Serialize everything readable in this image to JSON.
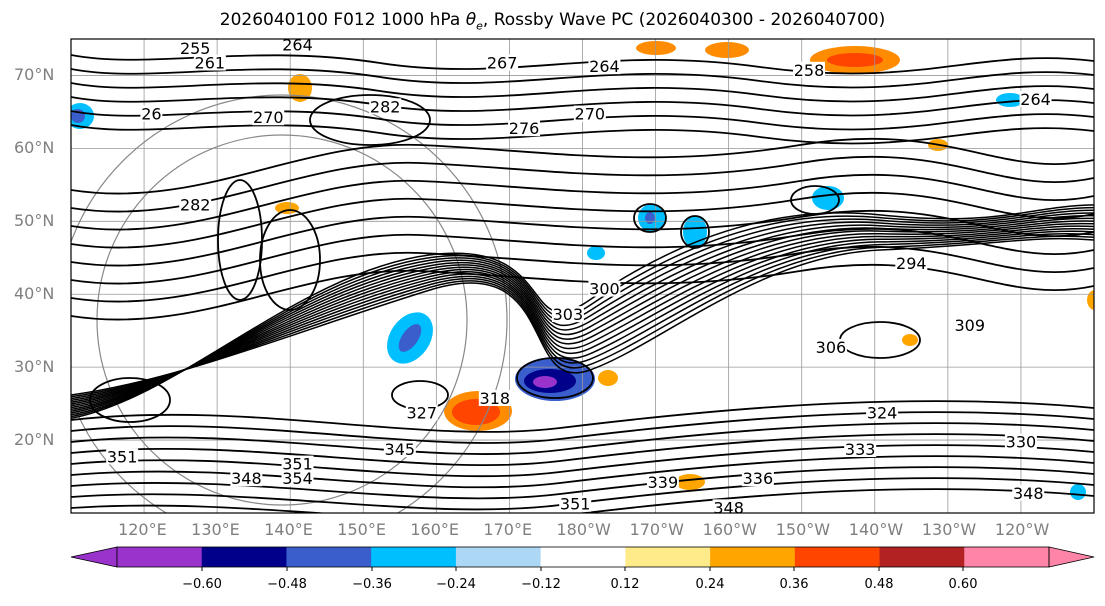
{
  "title": {
    "prefix": "2026040100 F012 1000 hPa ",
    "symbol": "θ",
    "symbol_sub": "e",
    "suffix": ", Rossby Wave PC (2026040300 - 2026040700)"
  },
  "lat_labels": [
    "70°N",
    "60°N",
    "50°N",
    "40°N",
    "30°N",
    "20°N"
  ],
  "lon_labels": [
    "120°E",
    "130°E",
    "140°E",
    "150°E",
    "160°E",
    "170°E",
    "180°W",
    "170°W",
    "160°W",
    "150°W",
    "140°W",
    "130°W",
    "120°W"
  ],
  "colorbar": {
    "ticks": [
      "−0.60",
      "−0.48",
      "−0.36",
      "−0.24",
      "−0.12",
      "0.12",
      "0.24",
      "0.36",
      "0.48",
      "0.60"
    ],
    "colors": [
      "#9933cc",
      "#00008b",
      "#3a5fcd",
      "#00bfff",
      "#add8f5",
      "#ffffff",
      "#ffeb8a",
      "#ffa500",
      "#ff4500",
      "#b22222",
      "#ff85a8",
      "#ff85a8"
    ]
  },
  "contour_labels": [
    {
      "text": "255",
      "lon": 127,
      "lat": 73.5
    },
    {
      "text": "261",
      "lon": 129,
      "lat": 71.5
    },
    {
      "text": "264",
      "lon": 141,
      "lat": 74
    },
    {
      "text": "267",
      "lon": 169,
      "lat": 71.5
    },
    {
      "text": "264",
      "lon": 183,
      "lat": 71
    },
    {
      "text": "258",
      "lon": 211,
      "lat": 70.5
    },
    {
      "text": "264",
      "lon": 242,
      "lat": 66.5
    },
    {
      "text": "282",
      "lon": 153,
      "lat": 65.5
    },
    {
      "text": "276",
      "lon": 172,
      "lat": 62.5
    },
    {
      "text": "270",
      "lon": 181,
      "lat": 64.5
    },
    {
      "text": "270",
      "lon": 137,
      "lat": 64
    },
    {
      "text": "26",
      "lon": 121,
      "lat": 64.5
    },
    {
      "text": "282",
      "lon": 127,
      "lat": 52
    },
    {
      "text": "294",
      "lon": 225,
      "lat": 44
    },
    {
      "text": "309",
      "lon": 233,
      "lat": 35.5
    },
    {
      "text": "306",
      "lon": 214,
      "lat": 32.5
    },
    {
      "text": "303",
      "lon": 178,
      "lat": 37
    },
    {
      "text": "300",
      "lon": 183,
      "lat": 40.5
    },
    {
      "text": "318",
      "lon": 168,
      "lat": 25.5
    },
    {
      "text": "327",
      "lon": 158,
      "lat": 23.5
    },
    {
      "text": "324",
      "lon": 221,
      "lat": 23.5
    },
    {
      "text": "345",
      "lon": 155,
      "lat": 18.5
    },
    {
      "text": "351",
      "lon": 117,
      "lat": 17.5
    },
    {
      "text": "351",
      "lon": 141,
      "lat": 16.5
    },
    {
      "text": "354",
      "lon": 141,
      "lat": 14.5
    },
    {
      "text": "348",
      "lon": 134,
      "lat": 14.5
    },
    {
      "text": "339",
      "lon": 191,
      "lat": 14
    },
    {
      "text": "336",
      "lon": 204,
      "lat": 14.5
    },
    {
      "text": "333",
      "lon": 218,
      "lat": 18.5
    },
    {
      "text": "330",
      "lon": 240,
      "lat": 19.5
    },
    {
      "text": "351",
      "lon": 179,
      "lat": 11
    },
    {
      "text": "348",
      "lon": 200,
      "lat": 10.5
    },
    {
      "text": "348",
      "lon": 241,
      "lat": 12.5
    }
  ]
}
